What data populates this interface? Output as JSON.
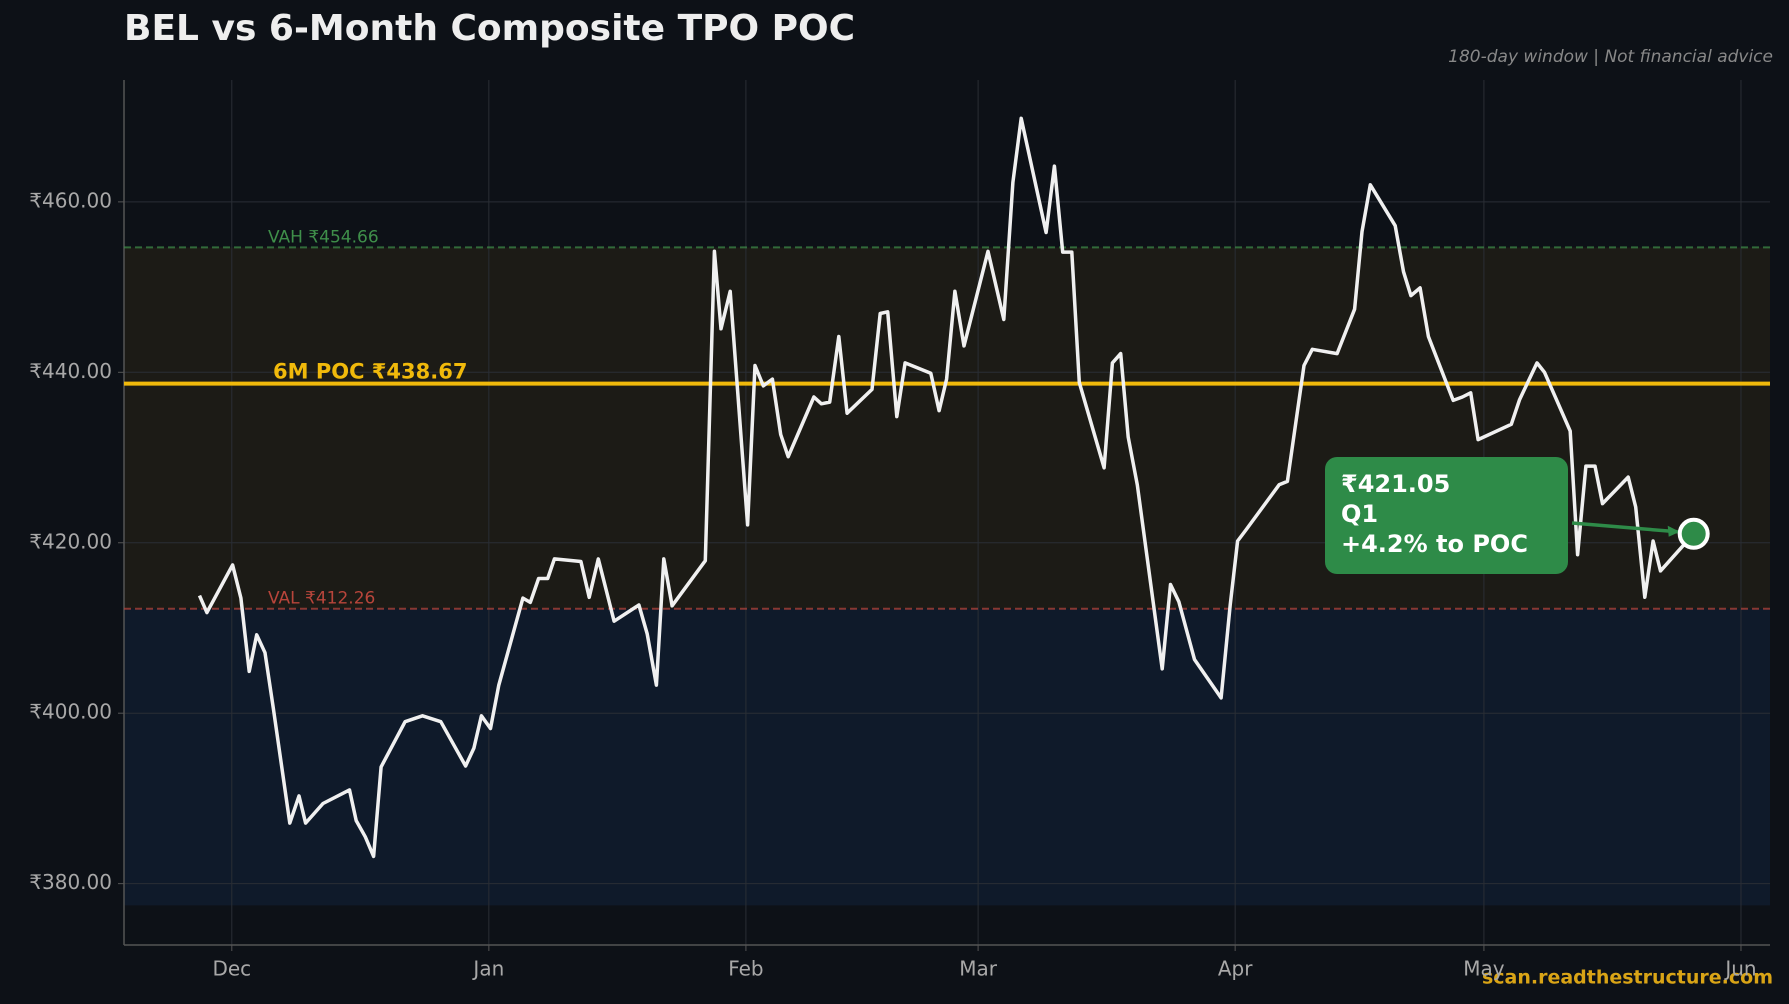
{
  "chart_data": {
    "type": "line",
    "title": "BEL vs 6-Month Composite TPO POC",
    "subtitle": "180-day window | Not financial advice",
    "watermark": "scan.readthestructure.com",
    "color": "#f0f0f0",
    "x": [
      -3.9,
      -3,
      0.1,
      1.1,
      2.1,
      3,
      4,
      5,
      7,
      8.1,
      8.9,
      11,
      14.2,
      15,
      16.1,
      17.1,
      18,
      20.9,
      23,
      25.2,
      28.2,
      29.2,
      30.1,
      31.2,
      32.2,
      35.1,
      36,
      37,
      38.1,
      38.9,
      42.1,
      43.1,
      44.2,
      46.1,
      49.1,
      50.1,
      51.2,
      52.1,
      53.1,
      57.1,
      58.2,
      59,
      60.1,
      62.2,
      63.1,
      64.1,
      65.2,
      66.2,
      67.1,
      70.2,
      71.1,
      72.1,
      73.2,
      74.2,
      77.2,
      78.2,
      79.1,
      80.2,
      81.2,
      84.3,
      85.3,
      86.2,
      87.2,
      88.3,
      91.2,
      93.1,
      94.2,
      95.2,
      98.2,
      99.2,
      100.2,
      101.3,
      102.2,
      105.2,
      106.2,
      107.2,
      108.1,
      109.2,
      112.2,
      113.2,
      114.2,
      116.1,
      119.3,
      120.4,
      121.3,
      122.3,
      126.3,
      127.3,
      129.3,
      130.3,
      133.3,
      135.4,
      136.3,
      137.3,
      140.3,
      141.3,
      142.2,
      143.3,
      144.3,
      147.3,
      148.4,
      149.4,
      150.3,
      154.3,
      155.3,
      157.4,
      158.3,
      161.4,
      162.3,
      163.3,
      164.4,
      165.3,
      168.4,
      169.3,
      170.4,
      171.4,
      172.3,
      176.3
    ],
    "values": [
      413.8,
      411.8,
      417.4,
      413.5,
      404.9,
      409.2,
      407.1,
      400.6,
      387.1,
      390.3,
      387.1,
      389.4,
      391.0,
      387.4,
      385.5,
      383.2,
      393.7,
      399.0,
      399.7,
      399.0,
      393.8,
      395.9,
      399.7,
      398.2,
      403.3,
      413.5,
      413.0,
      415.8,
      415.8,
      418.1,
      417.8,
      413.6,
      418.1,
      410.8,
      412.7,
      409.3,
      403.3,
      418.1,
      412.6,
      417.9,
      454.2,
      445.1,
      449.5,
      422.1,
      440.8,
      438.4,
      439.2,
      432.7,
      430.1,
      437.1,
      436.3,
      436.5,
      444.2,
      435.2,
      438.0,
      446.9,
      447.1,
      434.8,
      441.1,
      439.9,
      435.5,
      439.2,
      449.5,
      443.1,
      454.2,
      446.2,
      462.3,
      469.8,
      456.4,
      464.2,
      454.1,
      454.1,
      438.8,
      428.8,
      441.1,
      442.2,
      432.4,
      426.8,
      405.2,
      415.1,
      413.1,
      406.3,
      401.8,
      412.7,
      420.2,
      421.5,
      426.8,
      427.2,
      440.8,
      442.7,
      442.2,
      447.4,
      456.5,
      462.0,
      457.2,
      451.8,
      449.0,
      449.9,
      444.2,
      436.7,
      437.1,
      437.6,
      432.1,
      433.9,
      436.8,
      441.1,
      440.0,
      433.1,
      418.6,
      429.0,
      429.0,
      424.6,
      427.7,
      424.2,
      413.6,
      420.2,
      416.7,
      421.05
    ],
    "xlim": [
      -13,
      185.5
    ],
    "xticks": [
      {
        "value": 0,
        "label": "Dec"
      },
      {
        "value": 31,
        "label": "Jan"
      },
      {
        "value": 62,
        "label": "Feb"
      },
      {
        "value": 90,
        "label": "Mar"
      },
      {
        "value": 121,
        "label": "Apr"
      },
      {
        "value": 151,
        "label": "May"
      },
      {
        "value": 182,
        "label": "Jun"
      }
    ],
    "ylim": [
      372.8,
      474.3
    ],
    "yticks": [
      {
        "value": 380,
        "label": "₹380.00"
      },
      {
        "value": 400,
        "label": "₹400.00"
      },
      {
        "value": 420,
        "label": "₹420.00"
      },
      {
        "value": 440,
        "label": "₹440.00"
      },
      {
        "value": 460,
        "label": "₹460.00"
      }
    ],
    "grid": true,
    "range_low": 377.45,
    "vah": {
      "label": "VAH ₹454.66",
      "value": 454.66,
      "color": "#3f8f4a"
    },
    "val": {
      "label": "VAL ₹412.26",
      "value": 412.26,
      "color": "#b8453b"
    },
    "poc": {
      "label": "6M POC ₹438.67",
      "value": 438.67,
      "color": "#f0b90b"
    },
    "annotation": {
      "lines": [
        "₹421.05",
        "Q1",
        "+4.2% to POC"
      ],
      "color": "#2e8b48"
    }
  }
}
